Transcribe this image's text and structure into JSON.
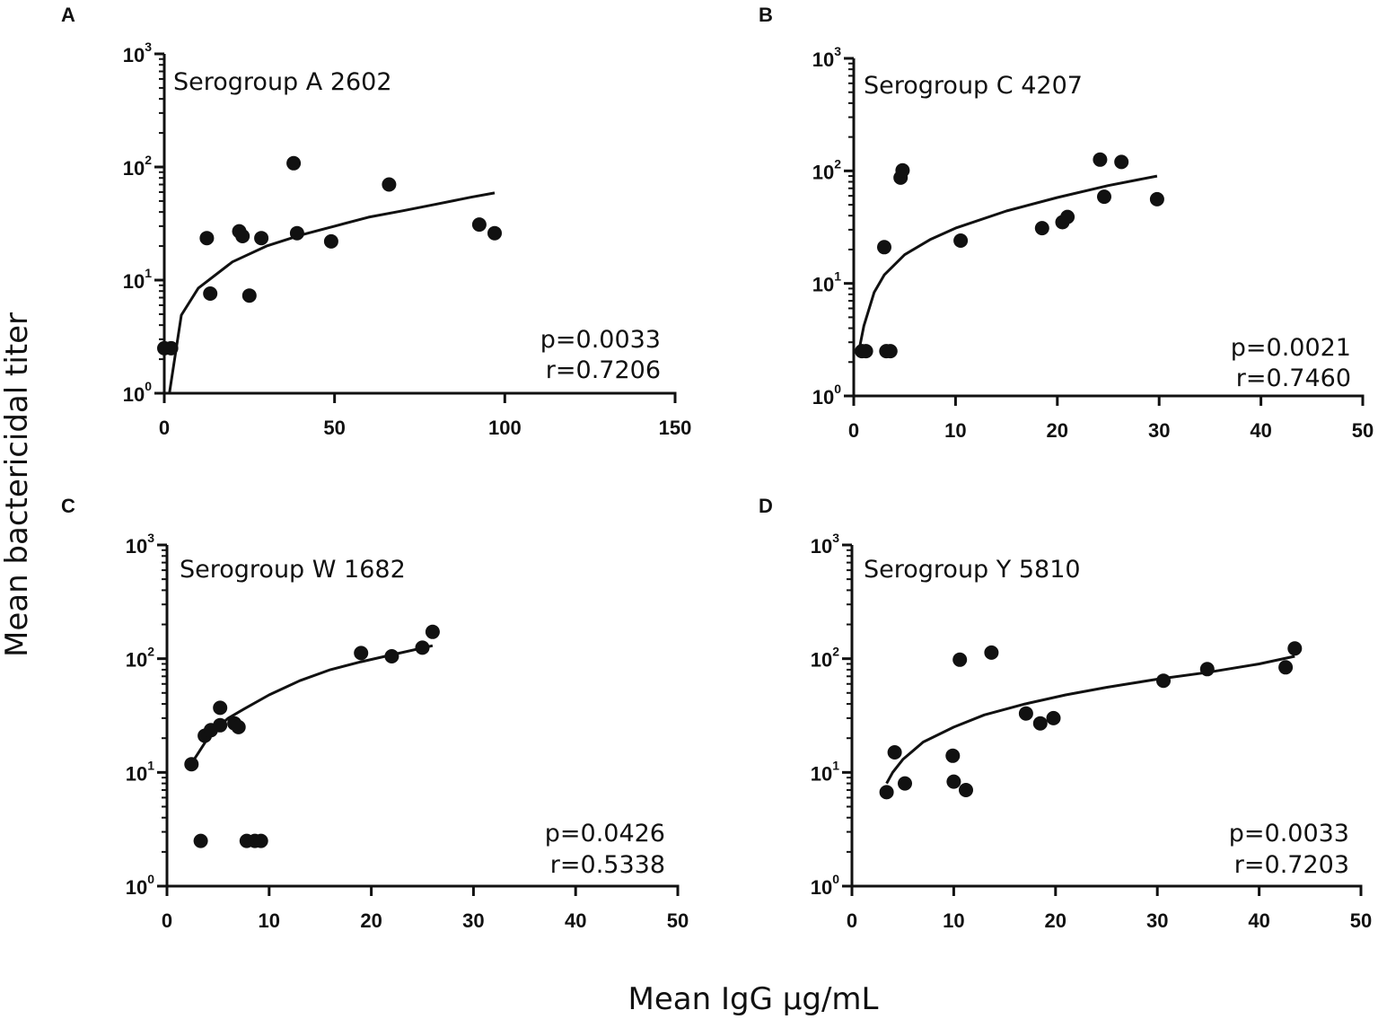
{
  "figure": {
    "ylabel": "Mean bactericidal titer",
    "xlabel": "Mean IgG µg/mL",
    "colors": {
      "ink": "#111111",
      "background": "#ffffff"
    }
  },
  "chart_data": [
    {
      "type": "scatter",
      "letter": "A",
      "title": "Serogroup A 2602",
      "p_text": "p=0.0033",
      "r_text": "r=0.7206",
      "xlim": [
        0,
        150
      ],
      "xticks": [
        0,
        50,
        100,
        150
      ],
      "yscale": "log",
      "ylim": [
        1,
        1000
      ],
      "yticks": [
        {
          "base": "10",
          "exp": "0"
        },
        {
          "base": "10",
          "exp": "1"
        },
        {
          "base": "10",
          "exp": "2"
        },
        {
          "base": "10",
          "exp": "3"
        }
      ],
      "points": [
        [
          0,
          2.5
        ],
        [
          2,
          2.5
        ],
        [
          12.5,
          23.5
        ],
        [
          13.5,
          7.6
        ],
        [
          22,
          27
        ],
        [
          23,
          24.5
        ],
        [
          25,
          7.3
        ],
        [
          28.5,
          23.5
        ],
        [
          38,
          108
        ],
        [
          39,
          26
        ],
        [
          49,
          22
        ],
        [
          66,
          70
        ],
        [
          92.5,
          31
        ],
        [
          97,
          26
        ]
      ],
      "fit": {
        "model": "log",
        "x": [
          1.5,
          5,
          10,
          20,
          30,
          40,
          50,
          60,
          70,
          80,
          90,
          97
        ],
        "y": [
          1,
          4.9,
          8.5,
          14.5,
          20,
          25,
          30,
          36,
          41,
          47,
          54,
          59
        ]
      }
    },
    {
      "type": "scatter",
      "letter": "B",
      "title": "Serogroup C 4207",
      "p_text": "p=0.0021",
      "r_text": "r=0.7460",
      "xlim": [
        0,
        50
      ],
      "xticks": [
        0,
        10,
        20,
        30,
        40,
        50
      ],
      "yscale": "log",
      "ylim": [
        1,
        1000
      ],
      "yticks": [
        {
          "base": "10",
          "exp": "0"
        },
        {
          "base": "10",
          "exp": "1"
        },
        {
          "base": "10",
          "exp": "2"
        },
        {
          "base": "10",
          "exp": "3"
        }
      ],
      "points": [
        [
          0.8,
          2.5
        ],
        [
          1.2,
          2.5
        ],
        [
          3,
          21
        ],
        [
          3.2,
          2.5
        ],
        [
          3.6,
          2.5
        ],
        [
          4.6,
          87
        ],
        [
          4.8,
          101
        ],
        [
          10.5,
          24
        ],
        [
          18.5,
          31
        ],
        [
          20.5,
          35
        ],
        [
          21,
          39
        ],
        [
          24.2,
          126
        ],
        [
          24.6,
          59
        ],
        [
          26.3,
          120
        ],
        [
          29.8,
          56
        ]
      ],
      "fit": {
        "model": "log",
        "x": [
          0.5,
          1,
          2,
          3,
          5,
          7.5,
          10,
          15,
          20,
          25,
          29.8
        ],
        "y": [
          2.5,
          4.2,
          8.3,
          11.9,
          18,
          24.5,
          31,
          44,
          58,
          74,
          90
        ]
      }
    },
    {
      "type": "scatter",
      "letter": "C",
      "title": "Serogroup W 1682",
      "p_text": "p=0.0426",
      "r_text": "r=0.5338",
      "xlim": [
        0,
        50
      ],
      "xticks": [
        0,
        10,
        20,
        30,
        40,
        50
      ],
      "yscale": "log",
      "ylim": [
        1,
        1000
      ],
      "yticks": [
        {
          "base": "10",
          "exp": "0"
        },
        {
          "base": "10",
          "exp": "1"
        },
        {
          "base": "10",
          "exp": "2"
        },
        {
          "base": "10",
          "exp": "3"
        }
      ],
      "points": [
        [
          2.4,
          11.8
        ],
        [
          3.3,
          2.5
        ],
        [
          3.7,
          21
        ],
        [
          4.3,
          23.5
        ],
        [
          5.2,
          37
        ],
        [
          5.2,
          26
        ],
        [
          6.6,
          27
        ],
        [
          7,
          25
        ],
        [
          7.8,
          2.5
        ],
        [
          8.6,
          2.5
        ],
        [
          9.2,
          2.5
        ],
        [
          19,
          112
        ],
        [
          22,
          105
        ],
        [
          25,
          125
        ],
        [
          26,
          172
        ]
      ],
      "fit": {
        "model": "log",
        "x": [
          2.4,
          3,
          4,
          5,
          6,
          7.5,
          10,
          13,
          16,
          19,
          22,
          26
        ],
        "y": [
          12,
          14.5,
          20,
          25,
          30,
          36,
          48,
          64,
          80,
          94,
          108,
          130
        ]
      }
    },
    {
      "type": "scatter",
      "letter": "D",
      "title": "Serogroup Y 5810",
      "p_text": "p=0.0033",
      "r_text": "r=0.7203",
      "xlim": [
        0,
        50
      ],
      "xticks": [
        0,
        10,
        20,
        30,
        40,
        50
      ],
      "yscale": "log",
      "ylim": [
        1,
        1000
      ],
      "yticks": [
        {
          "base": "10",
          "exp": "0"
        },
        {
          "base": "10",
          "exp": "1"
        },
        {
          "base": "10",
          "exp": "2"
        },
        {
          "base": "10",
          "exp": "3"
        }
      ],
      "points": [
        [
          3.4,
          6.7
        ],
        [
          4.2,
          15
        ],
        [
          5.2,
          8
        ],
        [
          9.9,
          14
        ],
        [
          10,
          8.3
        ],
        [
          10.6,
          98
        ],
        [
          11.2,
          7
        ],
        [
          13.7,
          113
        ],
        [
          17.1,
          33
        ],
        [
          18.5,
          27
        ],
        [
          19.8,
          30
        ],
        [
          30.6,
          64
        ],
        [
          34.9,
          81
        ],
        [
          42.6,
          84
        ],
        [
          43.5,
          123
        ]
      ],
      "fit": {
        "model": "log",
        "x": [
          3.4,
          4,
          5,
          7,
          10,
          13,
          17,
          21,
          25,
          30,
          35,
          40,
          43.5
        ],
        "y": [
          8,
          10,
          13,
          18.5,
          25,
          32,
          40,
          48,
          56,
          66,
          76,
          90,
          105
        ]
      }
    }
  ]
}
